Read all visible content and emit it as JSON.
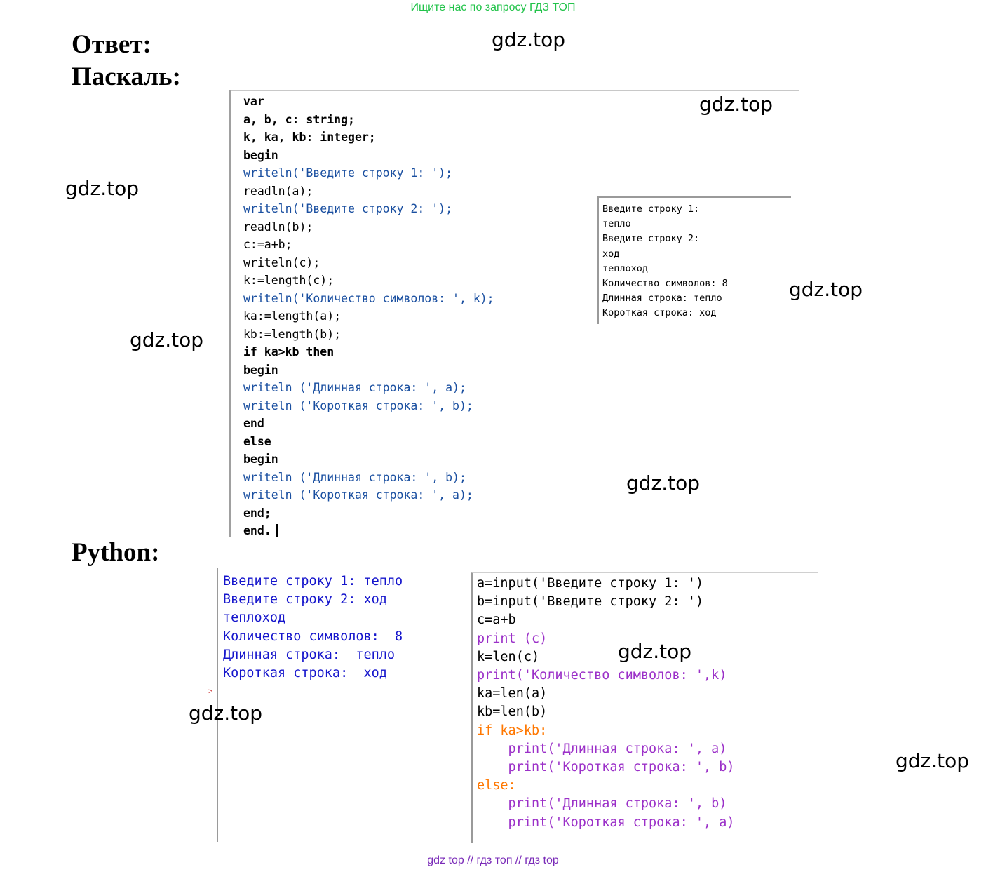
{
  "banner": "Ищите нас по запросу ГДЗ ТОП",
  "headings": {
    "answer": "Ответ:",
    "pascal": "Паскаль:",
    "python": "Python:"
  },
  "watermark": "gdz.top",
  "pascal": {
    "code_lines": [
      "var",
      "a, b, c: string;",
      "k, ka, kb: integer;",
      "begin",
      "writeln('Введите строку 1: ');",
      "readln(a);",
      "writeln('Введите строку 2: ');",
      "readln(b);",
      "c:=a+b;",
      "writeln(c);",
      "k:=length(c);",
      "writeln('Количество символов: ', k);",
      "ka:=length(a);",
      "kb:=length(b);",
      "if ka>kb then",
      "begin",
      "writeln ('Длинная строка: ', a);",
      "writeln ('Короткая строка: ', b);",
      "end",
      "else",
      "begin",
      "writeln ('Длинная строка: ', b);",
      "writeln ('Короткая строка: ', a);",
      "end;",
      "end."
    ],
    "output_lines": [
      "Введите строку 1:",
      "тепло",
      "Введите строку 2:",
      "ход",
      "теплоход",
      "Количество символов: 8",
      "Длинная строка: тепло",
      "Короткая строка: ход"
    ]
  },
  "python": {
    "shell_lines": [
      "Введите строку 1: тепло",
      "Введите строку 2: ход",
      "теплоход",
      "Количество символов:  8",
      "Длинная строка:  тепло",
      "Короткая строка:  ход"
    ],
    "shell_prompt": ">",
    "code_lines": [
      "a=input('Введите строку 1: ')",
      "b=input('Введите строку 2: ')",
      "c=a+b",
      "print (c)",
      "k=len(c)",
      "print('Количество символов: ',k)",
      "ka=len(a)",
      "kb=len(b)",
      "if ka>kb:",
      "    print('Длинная строка: ', a)",
      "    print('Короткая строка: ', b)",
      "else:",
      "    print('Длинная строка: ', b)",
      "    print('Короткая строка: ', a)"
    ]
  },
  "footer": "gdz top  //  гдз топ  //  гдз top"
}
